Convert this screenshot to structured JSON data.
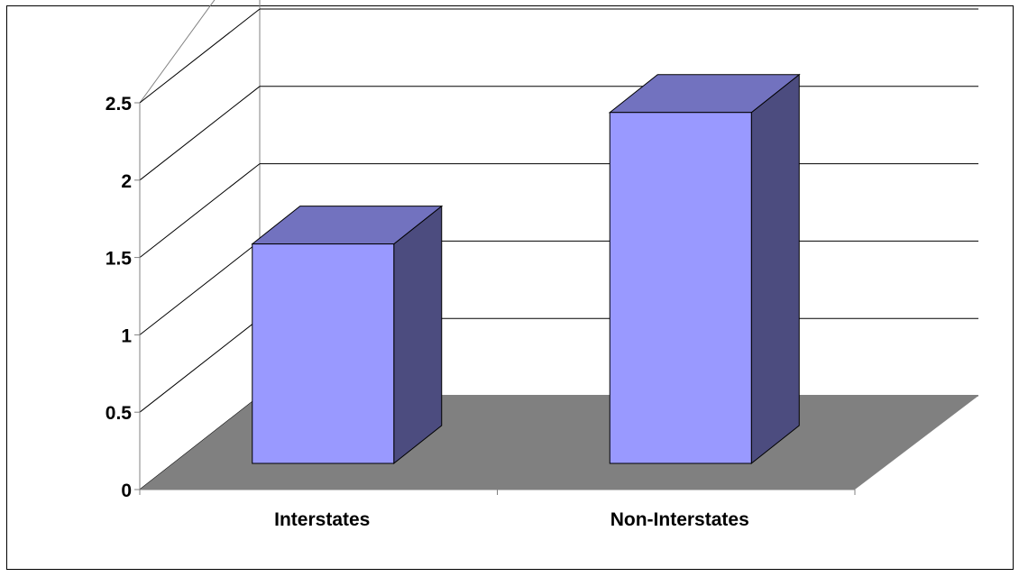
{
  "chart_data": {
    "type": "bar",
    "categories": [
      "Interstates",
      "Non-Interstates"
    ],
    "values": [
      1.5,
      2.35
    ],
    "ylim": [
      0,
      2.5
    ],
    "yticks": [
      "0",
      "0.5",
      "1",
      "1.5",
      "2",
      "2.5"
    ],
    "grid": true,
    "legend": "none",
    "colors": {
      "bar_front": "#9999ff",
      "bar_top": "#7272bf",
      "bar_side": "#4c4c7f",
      "floor": "#808080",
      "grid": "#808080",
      "edge": "#000000"
    }
  }
}
